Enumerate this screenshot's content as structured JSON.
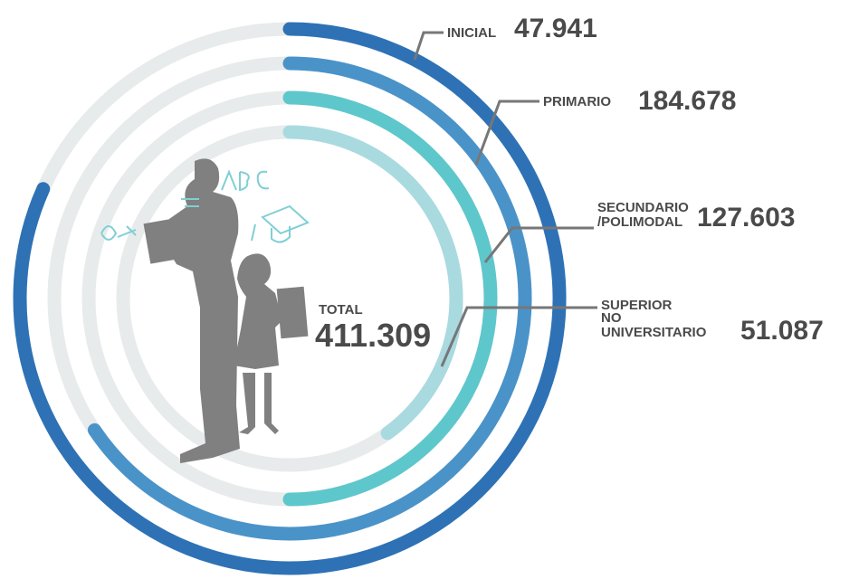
{
  "total": {
    "label": "TOTAL",
    "value": "411.309"
  },
  "levels": [
    {
      "label": [
        "INICIAL"
      ],
      "value": "47.941"
    },
    {
      "label": [
        "PRIMARIO"
      ],
      "value": "184.678"
    },
    {
      "label": [
        "SECUNDARIO",
        "/POLIMODAL"
      ],
      "value": "127.603"
    },
    {
      "label": [
        "SUPERIOR",
        "NO",
        "UNIVERSITARIO"
      ],
      "value": "51.087"
    }
  ]
}
